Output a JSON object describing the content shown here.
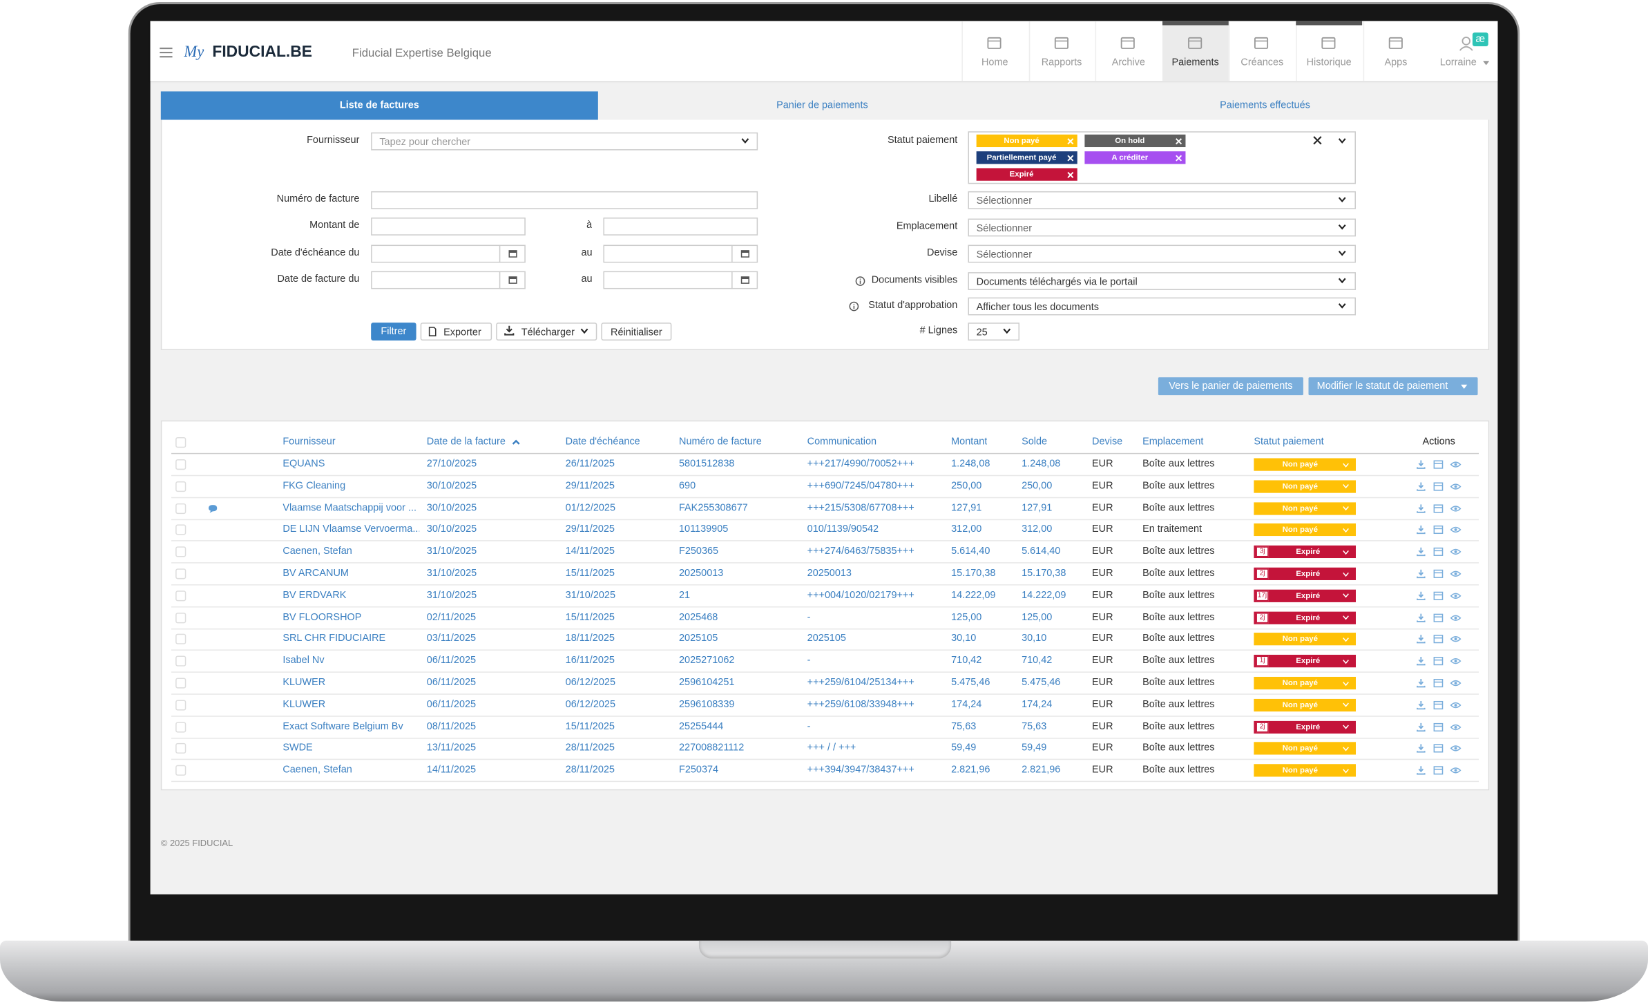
{
  "header": {
    "logo_my": "My",
    "logo": "FIDUCIAL.BE",
    "company": "Fiducial Expertise Belgique",
    "nav": [
      "Home",
      "Rapports",
      "Archive",
      "Paiements",
      "Créances",
      "Historique",
      "Apps"
    ],
    "active_nav": 3,
    "marked_nav": [
      3,
      5
    ],
    "user": "Lorraine",
    "badge": "æ"
  },
  "tabs": {
    "items": [
      "Liste de factures",
      "Panier de paiements",
      "Paiements effectués"
    ],
    "active": 0
  },
  "filters": {
    "supplier": {
      "label": "Fournisseur",
      "placeholder": "Tapez pour chercher"
    },
    "invoice_number": {
      "label": "Numéro de facture"
    },
    "amount": {
      "label": "Montant de",
      "to": "à"
    },
    "due_date": {
      "label": "Date d'échéance du",
      "to": "au"
    },
    "invoice_date": {
      "label": "Date de facture du",
      "to": "au"
    },
    "payment_status": {
      "label": "Statut paiement",
      "tags": [
        {
          "text": "Non payé",
          "color": "#ffc107"
        },
        {
          "text": "On hold",
          "color": "#5f5f5f"
        },
        {
          "text": "Partiellement payé",
          "color": "#1d3f7c"
        },
        {
          "text": "A créditer",
          "color": "#a64ff0"
        },
        {
          "text": "Expiré",
          "color": "#c4143a"
        }
      ]
    },
    "libelle": {
      "label": "Libellé",
      "value": "Sélectionner"
    },
    "location": {
      "label": "Emplacement",
      "value": "Sélectionner"
    },
    "currency": {
      "label": "Devise",
      "value": "Sélectionner"
    },
    "documents": {
      "label": "Documents visibles",
      "value": "Documents téléchargés via le portail"
    },
    "approval": {
      "label": "Statut d'approbation",
      "value": "Afficher tous les documents"
    },
    "lines": {
      "label": "# Lignes",
      "value": "25"
    }
  },
  "buttons": {
    "filter": "Filtrer",
    "export": "Exporter",
    "download": "Télécharger",
    "reset": "Réinitialiser",
    "to_basket": "Vers le panier de paiements",
    "change_status": "Modifier le statut de paiement"
  },
  "status_colors": {
    "Non payé": "#ffc107",
    "Expiré": "#c4143a"
  },
  "table": {
    "columns": [
      "Fournisseur",
      "Date de la facture",
      "Date d'échéance",
      "Numéro de facture",
      "Communication",
      "Montant",
      "Solde",
      "Devise",
      "Emplacement",
      "Statut paiement",
      "Actions"
    ],
    "sorted_column": 1,
    "rows": [
      {
        "cells": [
          "EQUANS",
          "27/10/2025",
          "26/11/2025",
          "5801512838",
          "+++217/4990/70052+++",
          "1.248,08",
          "1.248,08",
          "EUR",
          "Boîte aux lettres",
          "Non payé"
        ]
      },
      {
        "cells": [
          "FKG Cleaning",
          "30/10/2025",
          "29/11/2025",
          "690",
          "+++690/7245/04780+++",
          "250,00",
          "250,00",
          "EUR",
          "Boîte aux lettres",
          "Non payé"
        ]
      },
      {
        "cells": [
          "Vlaamse Maatschappij voor ...",
          "30/10/2025",
          "01/12/2025",
          "FAK255308677",
          "+++215/5308/67708+++",
          "127,91",
          "127,91",
          "EUR",
          "Boîte aux lettres",
          "Non payé"
        ],
        "comment": true
      },
      {
        "cells": [
          "DE LIJN Vlaamse Vervoerma...",
          "30/10/2025",
          "29/11/2025",
          "101139905",
          "010/1139/90542",
          "312,00",
          "312,00",
          "EUR",
          "En traitement",
          "Non payé"
        ]
      },
      {
        "cells": [
          "Caenen, Stefan",
          "31/10/2025",
          "14/11/2025",
          "F250365",
          "+++274/6463/75835+++",
          "5.614,40",
          "5.614,40",
          "EUR",
          "Boîte aux lettres",
          "Expiré"
        ],
        "days": "3j"
      },
      {
        "cells": [
          "BV ARCANUM",
          "31/10/2025",
          "15/11/2025",
          "20250013",
          "20250013",
          "15.170,38",
          "15.170,38",
          "EUR",
          "Boîte aux lettres",
          "Expiré"
        ],
        "days": "2j"
      },
      {
        "cells": [
          "BV ERDVARK",
          "31/10/2025",
          "31/10/2025",
          "21",
          "+++004/1020/02179+++",
          "14.222,09",
          "14.222,09",
          "EUR",
          "Boîte aux lettres",
          "Expiré"
        ],
        "days": "17j"
      },
      {
        "cells": [
          "BV FLOORSHOP",
          "02/11/2025",
          "15/11/2025",
          "2025468",
          "-",
          "125,00",
          "125,00",
          "EUR",
          "Boîte aux lettres",
          "Expiré"
        ],
        "days": "2j"
      },
      {
        "cells": [
          "SRL CHR FIDUCIAIRE",
          "03/11/2025",
          "18/11/2025",
          "2025105",
          "2025105",
          "30,10",
          "30,10",
          "EUR",
          "Boîte aux lettres",
          "Non payé"
        ]
      },
      {
        "cells": [
          "Isabel Nv",
          "06/11/2025",
          "16/11/2025",
          "2025271062",
          "-",
          "710,42",
          "710,42",
          "EUR",
          "Boîte aux lettres",
          "Expiré"
        ],
        "days": "1j"
      },
      {
        "cells": [
          "KLUWER",
          "06/11/2025",
          "06/12/2025",
          "2596104251",
          "+++259/6104/25134+++",
          "5.475,46",
          "5.475,46",
          "EUR",
          "Boîte aux lettres",
          "Non payé"
        ]
      },
      {
        "cells": [
          "KLUWER",
          "06/11/2025",
          "06/12/2025",
          "2596108339",
          "+++259/6108/33948+++",
          "174,24",
          "174,24",
          "EUR",
          "Boîte aux lettres",
          "Non payé"
        ]
      },
      {
        "cells": [
          "Exact Software Belgium Bv",
          "08/11/2025",
          "15/11/2025",
          "25255444",
          "-",
          "75,63",
          "75,63",
          "EUR",
          "Boîte aux lettres",
          "Expiré"
        ],
        "days": "2j"
      },
      {
        "cells": [
          "SWDE",
          "13/11/2025",
          "28/11/2025",
          "227008821112",
          "+++ / / +++",
          "59,49",
          "59,49",
          "EUR",
          "Boîte aux lettres",
          "Non payé"
        ]
      },
      {
        "cells": [
          "Caenen, Stefan",
          "14/11/2025",
          "28/11/2025",
          "F250374",
          "+++394/3947/38437+++",
          "2.821,96",
          "2.821,96",
          "EUR",
          "Boîte aux lettres",
          "Non payé"
        ]
      }
    ]
  },
  "footer": "© 2025 FIDUCIAL"
}
